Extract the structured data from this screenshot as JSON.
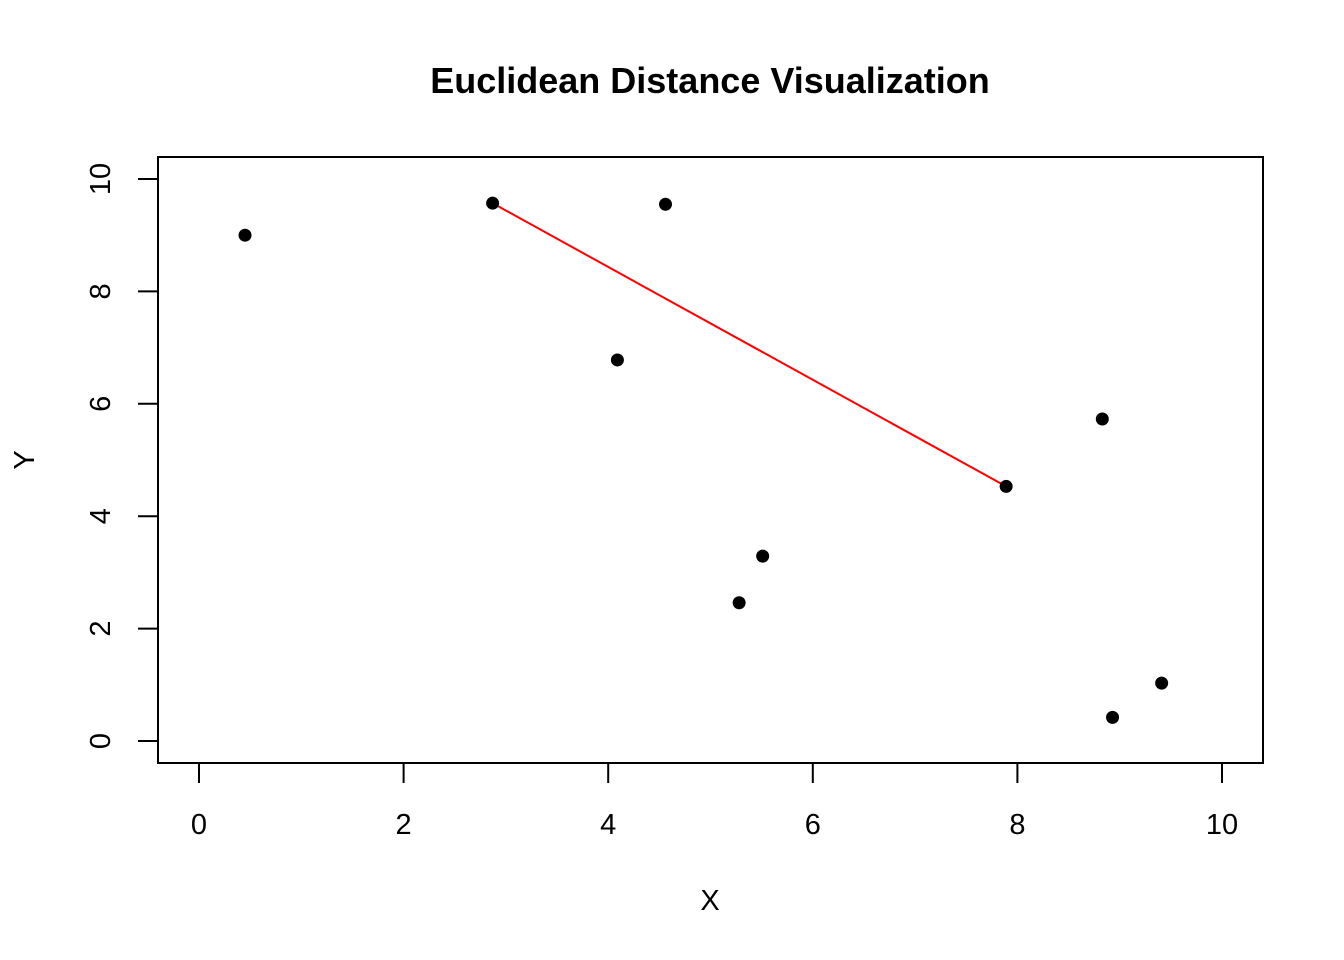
{
  "chart_data": {
    "type": "scatter",
    "title": "Euclidean Distance Visualization",
    "xlabel": "X",
    "ylabel": "Y",
    "xlim": [
      0,
      10
    ],
    "ylim": [
      0,
      10
    ],
    "xticks": [
      0,
      2,
      4,
      6,
      8,
      10
    ],
    "yticks": [
      0,
      2,
      4,
      6,
      8,
      10
    ],
    "grid": false,
    "points": [
      {
        "x": 0.45,
        "y": 9.0
      },
      {
        "x": 2.87,
        "y": 9.57
      },
      {
        "x": 4.56,
        "y": 9.55
      },
      {
        "x": 4.09,
        "y": 6.78
      },
      {
        "x": 8.83,
        "y": 5.73
      },
      {
        "x": 7.89,
        "y": 4.53
      },
      {
        "x": 5.51,
        "y": 3.29
      },
      {
        "x": 5.28,
        "y": 2.46
      },
      {
        "x": 9.41,
        "y": 1.03
      },
      {
        "x": 8.93,
        "y": 0.42
      }
    ],
    "segment": {
      "from": {
        "x": 2.87,
        "y": 9.57
      },
      "to": {
        "x": 7.89,
        "y": 4.53
      },
      "color": "#ff0000"
    },
    "point_color": "#000000"
  }
}
